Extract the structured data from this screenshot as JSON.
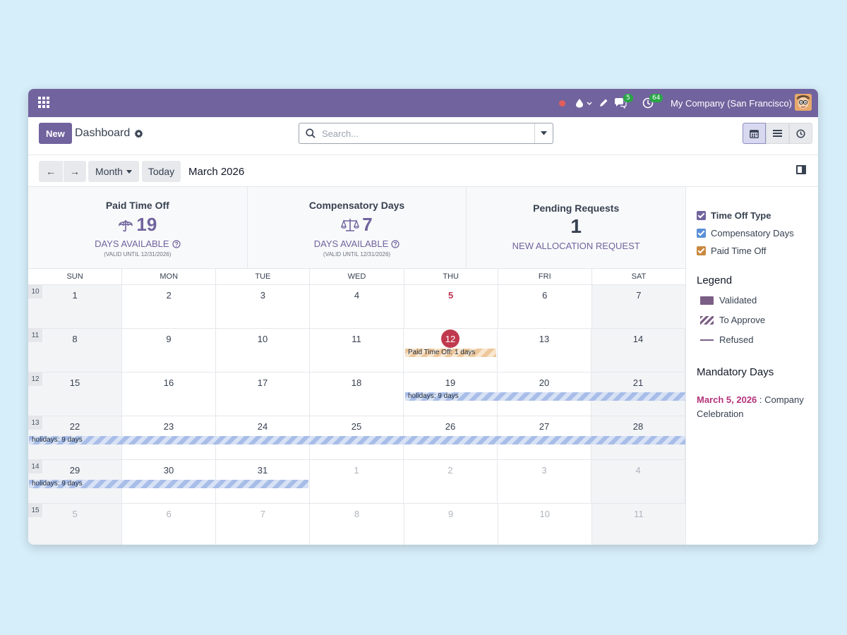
{
  "navbar": {
    "company": "My Company (San Francisco)",
    "messages_count": "5",
    "activities_count": "64"
  },
  "control_panel": {
    "new_label": "New",
    "breadcrumb": "Dashboard",
    "search_placeholder": "Search...",
    "prev_label": "←",
    "next_label": "→",
    "scale_label": "Month",
    "today_label": "Today",
    "period_title": "March 2026"
  },
  "stats": {
    "paid": {
      "title": "Paid Time Off",
      "value": "19",
      "sub": "DAYS AVAILABLE",
      "note": "(VALID UNTIL 12/31/2026)"
    },
    "comp": {
      "title": "Compensatory Days",
      "value": "7",
      "sub": "DAYS AVAILABLE",
      "note": "(VALID UNTIL 12/31/2026)"
    },
    "pending": {
      "title": "Pending Requests",
      "value": "1",
      "sub": "NEW ALLOCATION REQUEST"
    }
  },
  "calendar": {
    "weekdays": [
      "SUN",
      "MON",
      "TUE",
      "WED",
      "THU",
      "FRI",
      "SAT"
    ],
    "weeks": [
      {
        "num": "10",
        "days": [
          "1",
          "2",
          "3",
          "4",
          "5",
          "6",
          "7"
        ]
      },
      {
        "num": "11",
        "days": [
          "8",
          "9",
          "10",
          "11",
          "12",
          "13",
          "14"
        ]
      },
      {
        "num": "12",
        "days": [
          "15",
          "16",
          "17",
          "18",
          "19",
          "20",
          "21"
        ]
      },
      {
        "num": "13",
        "days": [
          "22",
          "23",
          "24",
          "25",
          "26",
          "27",
          "28"
        ]
      },
      {
        "num": "14",
        "days": [
          "29",
          "30",
          "31",
          "1",
          "2",
          "3",
          "4"
        ]
      },
      {
        "num": "15",
        "days": [
          "5",
          "6",
          "7",
          "8",
          "9",
          "10",
          "11"
        ]
      }
    ],
    "events": {
      "paid_time_off": "Paid Time Off: 1 days",
      "holidays_w12": "holidays: 9 days",
      "holidays_w13": "holidays: 9 days",
      "holidays_w14": "holidays: 9 days"
    }
  },
  "sidebar": {
    "filter_title": "Time Off Type",
    "filters": [
      "Compensatory Days",
      "Paid Time Off"
    ],
    "legend_title": "Legend",
    "legend": [
      "Validated",
      "To Approve",
      "Refused"
    ],
    "mandatory_title": "Mandatory Days",
    "mandatory_date": "March 5, 2026",
    "mandatory_sep": " : ",
    "mandatory_name": "Company Celebration"
  },
  "colors": {
    "brand": "#71639e",
    "today": "#c0394e",
    "mandatory": "#b4337a",
    "holiday": "#a8bde8",
    "paid": "#edc79b",
    "checkbox_type": "#71639e",
    "checkbox_comp": "#5b8fd8",
    "checkbox_paid": "#c8893f"
  }
}
